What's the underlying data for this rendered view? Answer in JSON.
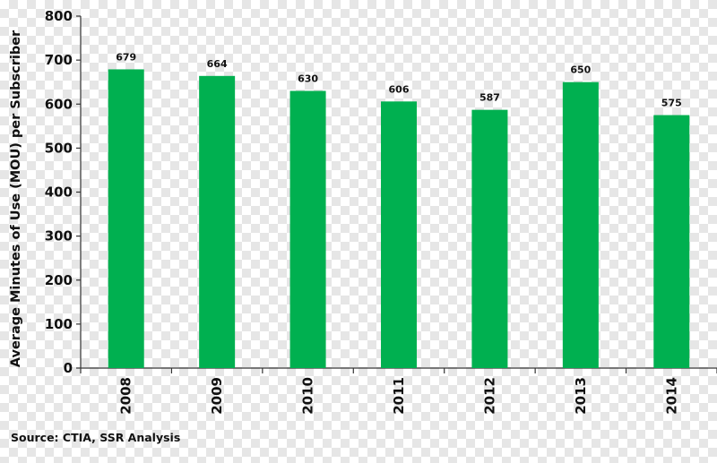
{
  "chart_data": {
    "type": "bar",
    "categories": [
      "2008",
      "2009",
      "2010",
      "2011",
      "2012",
      "2013",
      "2014"
    ],
    "values": [
      679,
      664,
      630,
      606,
      587,
      650,
      575
    ],
    "data_labels": [
      "679",
      "664",
      "630",
      "606",
      "587",
      "650",
      "575"
    ],
    "title": "",
    "xlabel": "",
    "ylabel": "Average Minutes of Use (MOU) per Subscriber",
    "ylim": [
      0,
      800
    ],
    "yticks": [
      0,
      100,
      200,
      300,
      400,
      500,
      600,
      700,
      800
    ],
    "grid": false,
    "legend": "none",
    "bar_color": "#00b050",
    "axis_color": "#333333"
  },
  "source": "Source: CTIA, SSR Analysis"
}
